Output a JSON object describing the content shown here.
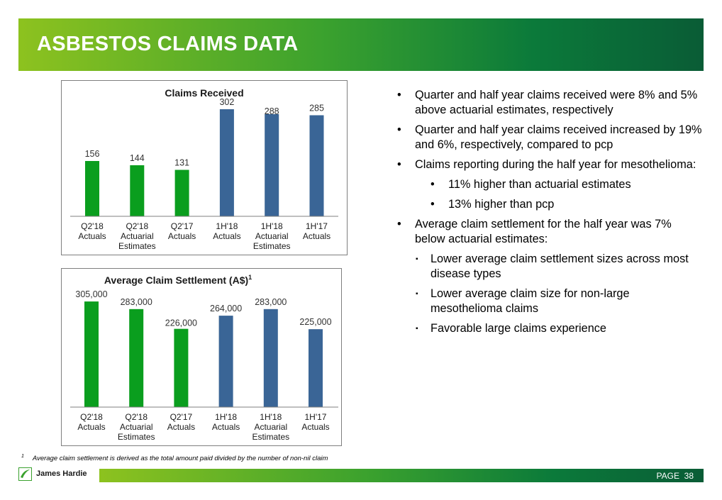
{
  "header": {
    "title": "ASBESTOS CLAIMS DATA"
  },
  "colors": {
    "actuals_quarter": "#0a9e1e",
    "half_year": "#3a6596"
  },
  "chart_data": [
    {
      "type": "bar",
      "title": "Claims Received",
      "categories": [
        [
          "Q2'18",
          "Actuals"
        ],
        [
          "Q2'18",
          "Actuarial",
          "Estimates"
        ],
        [
          "Q2'17",
          "Actuals"
        ],
        [
          "1H'18",
          "Actuals"
        ],
        [
          "1H'18",
          "Actuarial",
          "Estimates"
        ],
        [
          "1H'17",
          "Actuals"
        ]
      ],
      "values": [
        156,
        144,
        131,
        302,
        288,
        285
      ],
      "labels": [
        "156",
        "144",
        "131",
        "302",
        "288",
        "285"
      ],
      "colors": [
        "#0a9e1e",
        "#0a9e1e",
        "#0a9e1e",
        "#3a6596",
        "#3a6596",
        "#3a6596"
      ],
      "ylim": [
        0,
        340
      ]
    },
    {
      "type": "bar",
      "title": "Average Claim Settlement (A$)",
      "title_sup": "1",
      "categories": [
        [
          "Q2'18",
          "Actuals"
        ],
        [
          "Q2'18",
          "Actuarial",
          "Estimates"
        ],
        [
          "Q2'17",
          "Actuals"
        ],
        [
          "1H'18",
          "Actuals"
        ],
        [
          "1H'18",
          "Actuarial",
          "Estimates"
        ],
        [
          "1H'17",
          "Actuals"
        ]
      ],
      "values": [
        305000,
        283000,
        226000,
        264000,
        283000,
        225000
      ],
      "labels": [
        "305,000",
        "283,000",
        "226,000",
        "264,000",
        "283,000",
        "225,000"
      ],
      "colors": [
        "#0a9e1e",
        "#0a9e1e",
        "#0a9e1e",
        "#3a6596",
        "#3a6596",
        "#3a6596"
      ],
      "ylim": [
        0,
        340000
      ]
    }
  ],
  "bullets": [
    {
      "level": 0,
      "mark": "•",
      "text": "Quarter and half year claims received were 8% and 5% above actuarial estimates, respectively"
    },
    {
      "level": 0,
      "mark": "•",
      "text": "Quarter and half year claims received increased by 19% and 6%, respectively, compared to pcp"
    },
    {
      "level": 0,
      "mark": "•",
      "text": "Claims reporting during the half year for mesothelioma:"
    },
    {
      "level": 1,
      "mark": "•",
      "text": "11% higher than actuarial estimates"
    },
    {
      "level": 1,
      "mark": "•",
      "text": "13% higher than pcp"
    },
    {
      "level": 0,
      "mark": "•",
      "text": "Average claim settlement for the half year was 7% below actuarial estimates:"
    },
    {
      "level": 2,
      "mark": "▪",
      "text": "Lower average claim settlement sizes across most disease types"
    },
    {
      "level": 2,
      "mark": "▪",
      "text": "Lower average claim size for non-large mesothelioma claims"
    },
    {
      "level": 2,
      "mark": "▪",
      "text": "Favorable large claims experience"
    }
  ],
  "footnote": {
    "marker": "1",
    "text": "Average claim settlement is derived as the total amount paid divided by the number of non-nil claim"
  },
  "footer": {
    "logo_text": "James Hardie",
    "page_label": "PAGE",
    "page_number": "38"
  }
}
